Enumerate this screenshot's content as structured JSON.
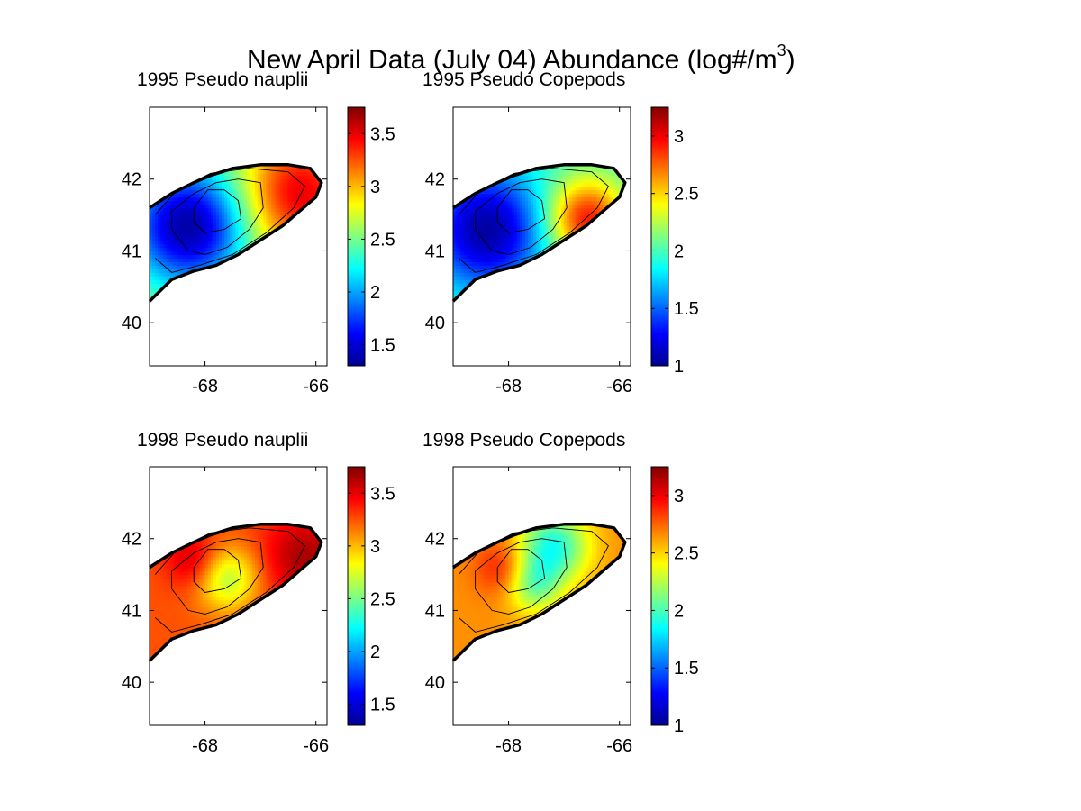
{
  "title": {
    "main": "New April Data (July 04) Abundance (log#/m",
    "exponent": "3",
    "close": ")"
  },
  "colormap": [
    "#00008f",
    "#0000ff",
    "#0080ff",
    "#00ffff",
    "#80ff80",
    "#ffff00",
    "#ff8000",
    "#ff0000",
    "#800000"
  ],
  "chart_data": [
    {
      "type": "heatmap",
      "title": "1995 Pseudo nauplii",
      "xlim": [
        -69,
        -65.8
      ],
      "ylim": [
        39.4,
        43
      ],
      "x_ticks": [
        -68,
        -66
      ],
      "x_tick_labels": [
        "-68",
        "-66"
      ],
      "y_ticks": [
        40,
        41,
        42
      ],
      "y_tick_labels": [
        "40",
        "41",
        "42"
      ],
      "colorbar": {
        "range": [
          1.3,
          3.75
        ],
        "ticks": [
          1.5,
          2,
          2.5,
          3,
          3.5
        ],
        "tick_labels": [
          "1.5",
          "2",
          "2.5",
          "3",
          "3.5"
        ]
      },
      "field": {
        "base": 2.6,
        "sources": [
          {
            "lon": -68.3,
            "lat": 41.35,
            "amp": -1.25,
            "sigma": 0.75
          },
          {
            "lon": -66.3,
            "lat": 41.8,
            "amp": 0.9,
            "sigma": 0.75
          }
        ]
      }
    },
    {
      "type": "heatmap",
      "title": "1995 Pseudo Copepods",
      "xlim": [
        -69,
        -65.8
      ],
      "ylim": [
        39.4,
        43
      ],
      "x_ticks": [
        -68,
        -66
      ],
      "x_tick_labels": [
        "-68",
        "-66"
      ],
      "y_ticks": [
        40,
        41,
        42
      ],
      "y_tick_labels": [
        "40",
        "41",
        "42"
      ],
      "colorbar": {
        "range": [
          1,
          3.25
        ],
        "ticks": [
          1.5,
          2,
          2.5,
          3
        ],
        "tick_labels": [
          "1.5",
          "2",
          "2.5",
          "3"
        ]
      },
      "field": {
        "base": 2.0,
        "sources": [
          {
            "lon": -68.4,
            "lat": 41.3,
            "amp": -0.95,
            "sigma": 0.75
          },
          {
            "lon": -66.6,
            "lat": 41.45,
            "amp": 0.95,
            "sigma": 0.5
          }
        ]
      }
    },
    {
      "type": "heatmap",
      "title": "1998 Pseudo nauplii",
      "xlim": [
        -69,
        -65.8
      ],
      "ylim": [
        39.4,
        43
      ],
      "x_ticks": [
        -68,
        -66
      ],
      "x_tick_labels": [
        "-68",
        "-66"
      ],
      "y_ticks": [
        40,
        41,
        42
      ],
      "y_tick_labels": [
        "40",
        "41",
        "42"
      ],
      "colorbar": {
        "range": [
          1.3,
          3.75
        ],
        "ticks": [
          1.5,
          2,
          2.5,
          3,
          3.5
        ],
        "tick_labels": [
          "1.5",
          "2",
          "2.5",
          "3",
          "3.5"
        ]
      },
      "field": {
        "base": 3.25,
        "sources": [
          {
            "lon": -67.6,
            "lat": 41.45,
            "amp": -0.6,
            "sigma": 0.4
          },
          {
            "lon": -68.2,
            "lat": 41.7,
            "amp": 0.35,
            "sigma": 0.35
          },
          {
            "lon": -66.2,
            "lat": 41.75,
            "amp": 0.4,
            "sigma": 0.55
          }
        ]
      }
    },
    {
      "type": "heatmap",
      "title": "1998 Pseudo Copepods",
      "xlim": [
        -69,
        -65.8
      ],
      "ylim": [
        39.4,
        43
      ],
      "x_ticks": [
        -68,
        -66
      ],
      "x_tick_labels": [
        "-68",
        "-66"
      ],
      "y_ticks": [
        40,
        41,
        42
      ],
      "y_tick_labels": [
        "40",
        "41",
        "42"
      ],
      "colorbar": {
        "range": [
          1,
          3.25
        ],
        "ticks": [
          1.5,
          2,
          2.5,
          3
        ],
        "tick_labels": [
          "1.5",
          "2",
          "2.5",
          "3"
        ]
      },
      "field": {
        "base": 2.65,
        "sources": [
          {
            "lon": -67.2,
            "lat": 41.9,
            "amp": -0.75,
            "sigma": 0.45
          },
          {
            "lon": -67.55,
            "lat": 41.35,
            "amp": -0.5,
            "sigma": 0.35
          },
          {
            "lon": -68.1,
            "lat": 41.6,
            "amp": 0.3,
            "sigma": 0.35
          }
        ]
      }
    }
  ]
}
